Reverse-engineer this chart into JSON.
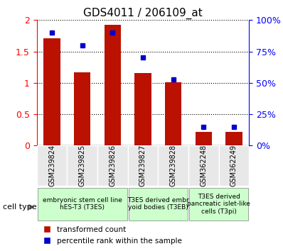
{
  "title": "GDS4011 / 206109_at",
  "samples": [
    "GSM239824",
    "GSM239825",
    "GSM239826",
    "GSM239827",
    "GSM239828",
    "GSM362248",
    "GSM362249"
  ],
  "transformed_count": [
    1.71,
    1.17,
    1.92,
    1.16,
    1.01,
    0.22,
    0.22
  ],
  "percentile_rank": [
    90,
    80,
    90,
    70,
    53,
    15,
    15
  ],
  "ylim_left": [
    0,
    2
  ],
  "ylim_right": [
    0,
    100
  ],
  "yticks_left": [
    0,
    0.5,
    1.0,
    1.5,
    2.0
  ],
  "ytick_labels_left": [
    "0",
    "0.5",
    "1",
    "1.5",
    "2"
  ],
  "yticks_right": [
    0,
    25,
    50,
    75,
    100
  ],
  "ytick_labels_right": [
    "0%",
    "25%",
    "50%",
    "75%",
    "100%"
  ],
  "bar_color": "#BB1100",
  "dot_color": "#0000CC",
  "grid_color": "black",
  "cell_groups": [
    {
      "label": "embryonic stem cell line\nhES-T3 (T3ES)",
      "start": 0,
      "end": 2,
      "color": "#CCFFCC"
    },
    {
      "label": "T3ES derived embr\nyoid bodies (T3EB)",
      "start": 3,
      "end": 4,
      "color": "#CCFFCC"
    },
    {
      "label": "T3ES derived\npancreatic islet-like\ncells (T3pi)",
      "start": 5,
      "end": 6,
      "color": "#CCFFCC"
    }
  ],
  "legend_bar_label": "transformed count",
  "legend_dot_label": "percentile rank within the sample",
  "cell_type_label": "cell type",
  "xlabel_rotation": 90,
  "bg_color": "#E8E8E8",
  "plot_bg_color": "#FFFFFF"
}
